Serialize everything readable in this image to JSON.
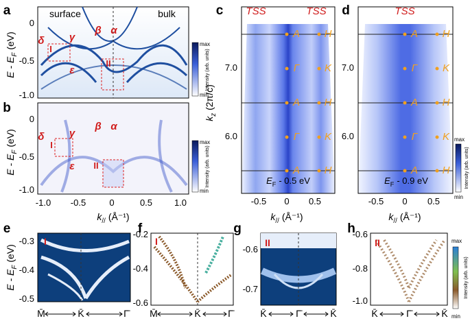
{
  "panels": {
    "a": {
      "label": "a",
      "surface": "surface",
      "bulk": "bulk",
      "bands": {
        "delta": "δ",
        "gamma": "γ",
        "beta": "β",
        "alpha": "α",
        "epsilon": "ε"
      },
      "boxes": [
        "I",
        "II"
      ],
      "y_axis": {
        "title": [
          "E - E",
          "F",
          "(eV)"
        ],
        "ticks": [
          "0",
          "-0.5",
          "-1.0"
        ]
      },
      "colorbar": {
        "title": "Intensity (arb. units)",
        "max": "max",
        "min": "min"
      }
    },
    "b": {
      "label": "b",
      "bands": {
        "delta": "δ",
        "gamma": "γ",
        "beta": "β",
        "alpha": "α",
        "epsilon": "ε"
      },
      "boxes": [
        "I",
        "II"
      ],
      "y_axis": {
        "title": [
          "E - E",
          "F",
          "(eV)"
        ],
        "ticks": [
          "0",
          "-0.5",
          "-1.0"
        ]
      },
      "x_axis": {
        "title": [
          "k",
          "//",
          "(Å⁻¹)"
        ],
        "ticks": [
          "-1.0",
          "-0.5",
          "0",
          "0.5",
          "1.0"
        ]
      },
      "colorbar": {
        "title": "Intensity (arb. units)",
        "max": "max",
        "min": "min"
      }
    },
    "c": {
      "label": "c",
      "tss": [
        "TSS",
        "TSS"
      ],
      "points": [
        [
          "A",
          "H"
        ],
        [
          "Γ",
          "K"
        ],
        [
          "A",
          "H"
        ],
        [
          "Γ",
          "K"
        ],
        [
          "A",
          "H"
        ]
      ],
      "y_axis": {
        "title": [
          "k",
          "z",
          "(2π/c)"
        ],
        "ticks": [
          "7.0",
          "6.0"
        ]
      },
      "x_axis": {
        "title": [
          "k",
          "//",
          "(Å⁻¹)"
        ],
        "ticks": [
          "-0.5",
          "0",
          "0.5"
        ]
      },
      "energy": [
        "E",
        "F",
        "- 0.5 eV"
      ]
    },
    "d": {
      "label": "d",
      "tss": [
        "TSS"
      ],
      "points": [
        [
          "A",
          "H"
        ],
        [
          "Γ",
          "K"
        ],
        [
          "A",
          "H"
        ],
        [
          "Γ",
          "K"
        ],
        [
          "A",
          "H"
        ]
      ],
      "y_axis": {
        "ticks": [
          "7.0",
          "6.0"
        ]
      },
      "x_axis": {
        "title": [
          "k",
          "//",
          "(Å⁻¹)"
        ],
        "ticks": [
          "-0.5",
          "0",
          "0.5"
        ]
      },
      "energy": [
        "E",
        "F",
        "- 0.9 eV"
      ],
      "colorbar": {
        "title": "Intensity (arb. units)",
        "max": "max",
        "min": "min"
      }
    },
    "e": {
      "label": "e",
      "box": "I",
      "y_axis": {
        "title": [
          "E - E",
          "F",
          "(eV)"
        ],
        "ticks": [
          "-0.3",
          "-0.4",
          "-0.5"
        ]
      },
      "x_axis": {
        "ticks": [
          "M̄",
          "K̄",
          "Γ̄"
        ]
      }
    },
    "f": {
      "label": "f",
      "box": "I",
      "y_axis": {
        "ticks": [
          "-0.2",
          "-0.4",
          "-0.6"
        ]
      },
      "x_axis": {
        "ticks": [
          "M̄",
          "K̄",
          "Γ̄"
        ]
      }
    },
    "g": {
      "label": "g",
      "box": "II",
      "y_axis": {
        "ticks": [
          "-0.6",
          "-0.7"
        ]
      },
      "x_axis": {
        "ticks": [
          "K̄",
          "Γ̄",
          "K̄"
        ]
      }
    },
    "h": {
      "label": "h",
      "box": "II",
      "y_axis": {
        "ticks": [
          "-0.6",
          "-0.8",
          "-1.0"
        ]
      },
      "x_axis": {
        "ticks": [
          "K̄",
          "Γ̄",
          "K̄"
        ]
      },
      "colorbar": {
        "title": "Intensity (arb. units)",
        "max": "max",
        "min": "min"
      }
    }
  }
}
